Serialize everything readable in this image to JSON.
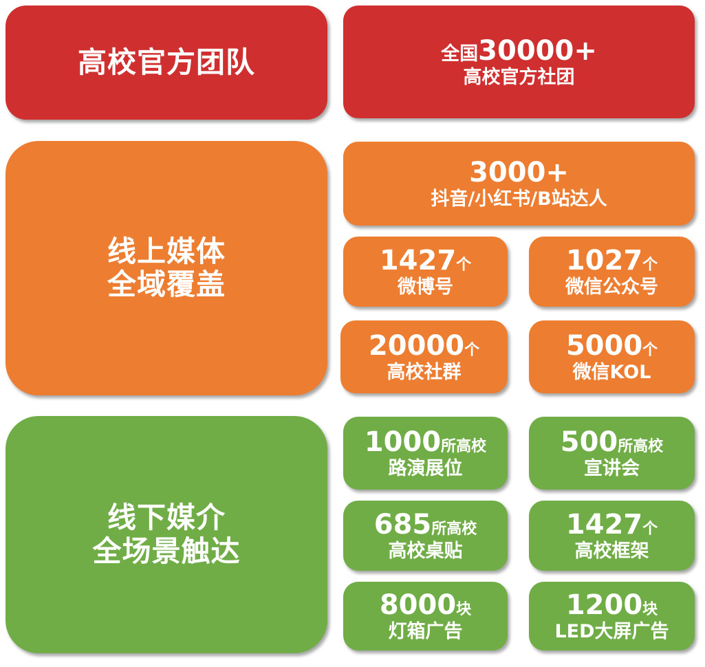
{
  "colors": {
    "red": "#d02f2f",
    "orange": "#ed7d31",
    "green": "#70ad47"
  },
  "team": {
    "title": "高校官方团队",
    "prefix": "全国",
    "count": "30000+",
    "label": "高校官方社团"
  },
  "online": {
    "title_line1": "线上媒体",
    "title_line2": "全域覆盖",
    "top": {
      "value": "3000+",
      "label": "抖音/小红书/B站达人"
    },
    "items": [
      {
        "value": "1427",
        "unit": "个",
        "label": "微博号"
      },
      {
        "value": "1027",
        "unit": "个",
        "label": "微信公众号"
      },
      {
        "value": "20000",
        "unit": "个",
        "label": "高校社群"
      },
      {
        "value": "5000",
        "unit": "个",
        "label": "微信KOL"
      }
    ]
  },
  "offline": {
    "title_line1": "线下媒介",
    "title_line2": "全场景触达",
    "items": [
      {
        "value": "1000",
        "unit": "所高校",
        "label": "路演展位"
      },
      {
        "value": "500",
        "unit": "所高校",
        "label": "宣讲会"
      },
      {
        "value": "685",
        "unit": "所高校",
        "label": "高校桌贴"
      },
      {
        "value": "1427",
        "unit": "个",
        "label": "高校框架"
      },
      {
        "value": "8000",
        "unit": "块",
        "label": "灯箱广告"
      },
      {
        "value": "1200",
        "unit": "块",
        "label": "LED大屏广告"
      }
    ]
  }
}
